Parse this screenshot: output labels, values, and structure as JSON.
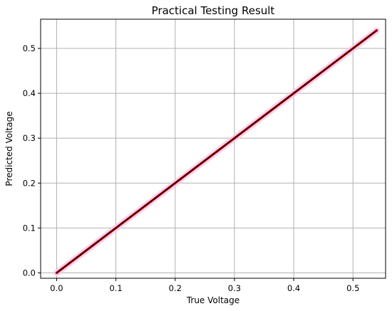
{
  "chart_data": {
    "type": "scatter",
    "title": "Practical Testing Result",
    "xlabel": "True Voltage",
    "ylabel": "Predicted Voltage",
    "xlim": [
      -0.027,
      0.555
    ],
    "ylim": [
      -0.012,
      0.565
    ],
    "xticks": [
      0.0,
      0.1,
      0.2,
      0.3,
      0.4,
      0.5
    ],
    "yticks": [
      0.0,
      0.1,
      0.2,
      0.3,
      0.4,
      0.5
    ],
    "xtick_labels": [
      "0.0",
      "0.1",
      "0.2",
      "0.3",
      "0.4",
      "0.5"
    ],
    "ytick_labels": [
      "0.0",
      "0.1",
      "0.2",
      "0.3",
      "0.4",
      "0.5"
    ],
    "grid": true,
    "series": [
      {
        "kind": "points",
        "color": "#cc0000",
        "halo_color": "#f7c8ee",
        "x": [
          0.0,
          0.01,
          0.02,
          0.03,
          0.04,
          0.05,
          0.06,
          0.07,
          0.08,
          0.09,
          0.1,
          0.11,
          0.12,
          0.13,
          0.14,
          0.15,
          0.16,
          0.17,
          0.18,
          0.19,
          0.2,
          0.21,
          0.22,
          0.23,
          0.24,
          0.25,
          0.26,
          0.27,
          0.28,
          0.29,
          0.3,
          0.31,
          0.32,
          0.33,
          0.34,
          0.35,
          0.36,
          0.37,
          0.38,
          0.39,
          0.4,
          0.42,
          0.44,
          0.46,
          0.5,
          0.54
        ],
        "y": [
          0.0,
          0.01,
          0.02,
          0.03,
          0.04,
          0.05,
          0.06,
          0.07,
          0.08,
          0.09,
          0.1,
          0.11,
          0.12,
          0.13,
          0.14,
          0.15,
          0.16,
          0.17,
          0.18,
          0.19,
          0.2,
          0.21,
          0.22,
          0.23,
          0.24,
          0.25,
          0.26,
          0.27,
          0.28,
          0.29,
          0.3,
          0.31,
          0.32,
          0.33,
          0.34,
          0.35,
          0.36,
          0.37,
          0.38,
          0.39,
          0.4,
          0.42,
          0.44,
          0.46,
          0.5,
          0.54
        ]
      },
      {
        "kind": "line",
        "color": "#000000",
        "x": [
          0.0,
          0.54
        ],
        "y": [
          0.0,
          0.54
        ]
      }
    ]
  }
}
